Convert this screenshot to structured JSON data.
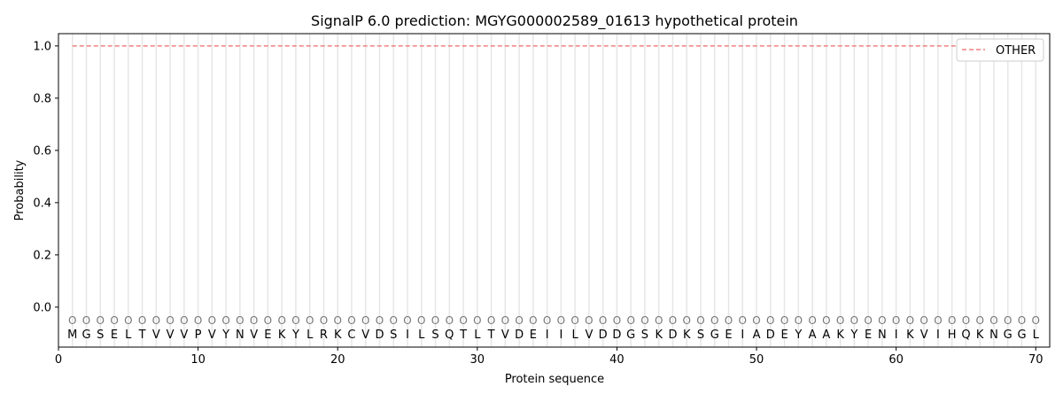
{
  "chart_data": {
    "type": "line",
    "title": "SignalP 6.0 prediction: MGYG000002589_01613 hypothetical protein",
    "xlabel": "Protein sequence",
    "ylabel": "Probability",
    "xlim": [
      0,
      71
    ],
    "ylim": [
      -0.153,
      1.047
    ],
    "xticks": [
      0,
      10,
      20,
      30,
      40,
      50,
      60,
      70
    ],
    "yticks": [
      0.0,
      0.2,
      0.4,
      0.6,
      0.8,
      1.0
    ],
    "grid": "vertical lines at each residue",
    "legend_position": "top-right",
    "sequence": [
      "M",
      "G",
      "S",
      "E",
      "L",
      "T",
      "V",
      "V",
      "V",
      "P",
      "V",
      "Y",
      "N",
      "V",
      "E",
      "K",
      "Y",
      "L",
      "R",
      "K",
      "C",
      "V",
      "D",
      "S",
      "I",
      "L",
      "S",
      "Q",
      "T",
      "L",
      "T",
      "V",
      "D",
      "E",
      "I",
      "I",
      "L",
      "V",
      "D",
      "D",
      "G",
      "S",
      "K",
      "D",
      "K",
      "S",
      "G",
      "E",
      "I",
      "A",
      "D",
      "E",
      "Y",
      "A",
      "A",
      "K",
      "Y",
      "E",
      "N",
      "I",
      "K",
      "V",
      "I",
      "H",
      "Q",
      "K",
      "N",
      "G",
      "G",
      "L"
    ],
    "labels_marker": "O",
    "series": [
      {
        "name": "OTHER",
        "color": "#f08080",
        "style": "dashed",
        "x_range": [
          1,
          70
        ],
        "value": 1.0
      }
    ]
  }
}
